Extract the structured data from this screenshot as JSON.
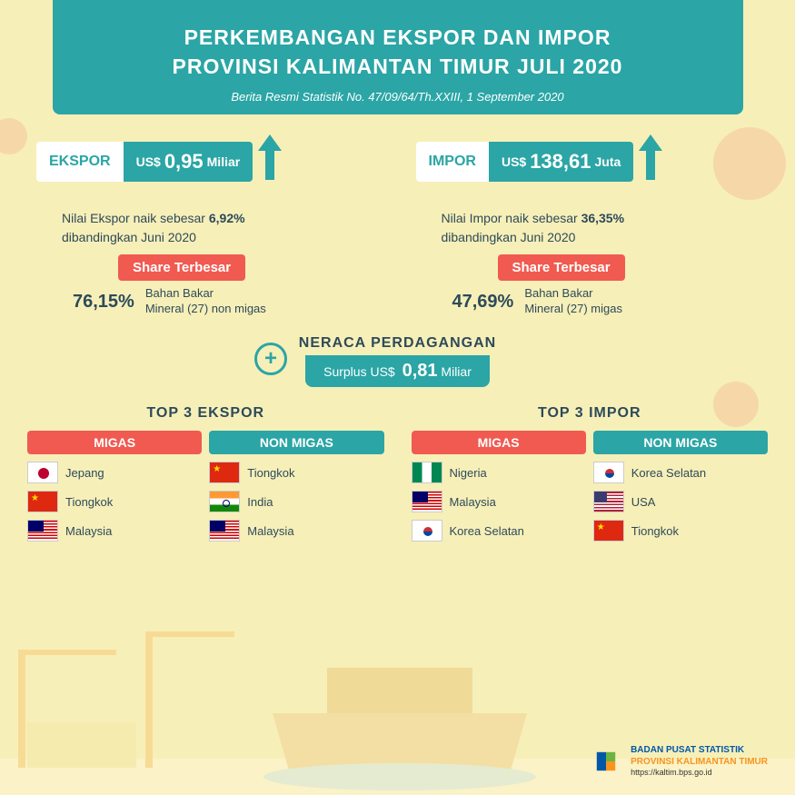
{
  "header": {
    "title_line1": "PERKEMBANGAN EKSPOR DAN IMPOR",
    "title_line2": "PROVINSI KALIMANTAN TIMUR JULI 2020",
    "subtitle": "Berita Resmi Statistik No. 47/09/64/Th.XXIII, 1 September 2020"
  },
  "ekspor": {
    "label": "EKSPOR",
    "currency": "US$",
    "value": "0,95",
    "unit": "Miliar",
    "desc_pre": "Nilai Ekspor naik sebesar ",
    "desc_pct": "6,92%",
    "desc_post": "dibandingkan Juni 2020",
    "share_label": "Share Terbesar",
    "share_pct": "76,15%",
    "share_txt1": "Bahan Bakar",
    "share_txt2": "Mineral (27) non migas"
  },
  "impor": {
    "label": "IMPOR",
    "currency": "US$",
    "value": "138,61",
    "unit": "Juta",
    "desc_pre": "Nilai Impor naik sebesar ",
    "desc_pct": "36,35%",
    "desc_post": "dibandingkan Juni 2020",
    "share_label": "Share Terbesar",
    "share_pct": "47,69%",
    "share_txt1": "Bahan Bakar",
    "share_txt2": "Mineral (27) migas"
  },
  "neraca": {
    "title": "NERACA PERDAGANGAN",
    "label": "Surplus US$",
    "value": "0,81",
    "unit": "Miliar"
  },
  "top3_ekspor": {
    "title": "TOP 3 EKSPOR",
    "migas_label": "MIGAS",
    "nonmigas_label": "NON MIGAS",
    "migas": [
      {
        "flag": "japan",
        "name": "Jepang"
      },
      {
        "flag": "china",
        "name": "Tiongkok"
      },
      {
        "flag": "malaysia",
        "name": "Malaysia"
      }
    ],
    "nonmigas": [
      {
        "flag": "china",
        "name": "Tiongkok"
      },
      {
        "flag": "india",
        "name": "India"
      },
      {
        "flag": "malaysia",
        "name": "Malaysia"
      }
    ]
  },
  "top3_impor": {
    "title": "TOP 3 IMPOR",
    "migas_label": "MIGAS",
    "nonmigas_label": "NON MIGAS",
    "migas": [
      {
        "flag": "nigeria",
        "name": "Nigeria"
      },
      {
        "flag": "malaysia",
        "name": "Malaysia"
      },
      {
        "flag": "korea",
        "name": "Korea Selatan"
      }
    ],
    "nonmigas": [
      {
        "flag": "korea",
        "name": "Korea Selatan"
      },
      {
        "flag": "usa",
        "name": "USA"
      },
      {
        "flag": "china",
        "name": "Tiongkok"
      }
    ]
  },
  "footer": {
    "org": "BADAN PUSAT STATISTIK",
    "prov": "PROVINSI KALIMANTAN TIMUR",
    "url": "https://kaltim.bps.go.id"
  },
  "colors": {
    "teal": "#2ba5a5",
    "red": "#f05a50",
    "yellow_bg": "#f7efb8",
    "text": "#2d4a5a"
  }
}
